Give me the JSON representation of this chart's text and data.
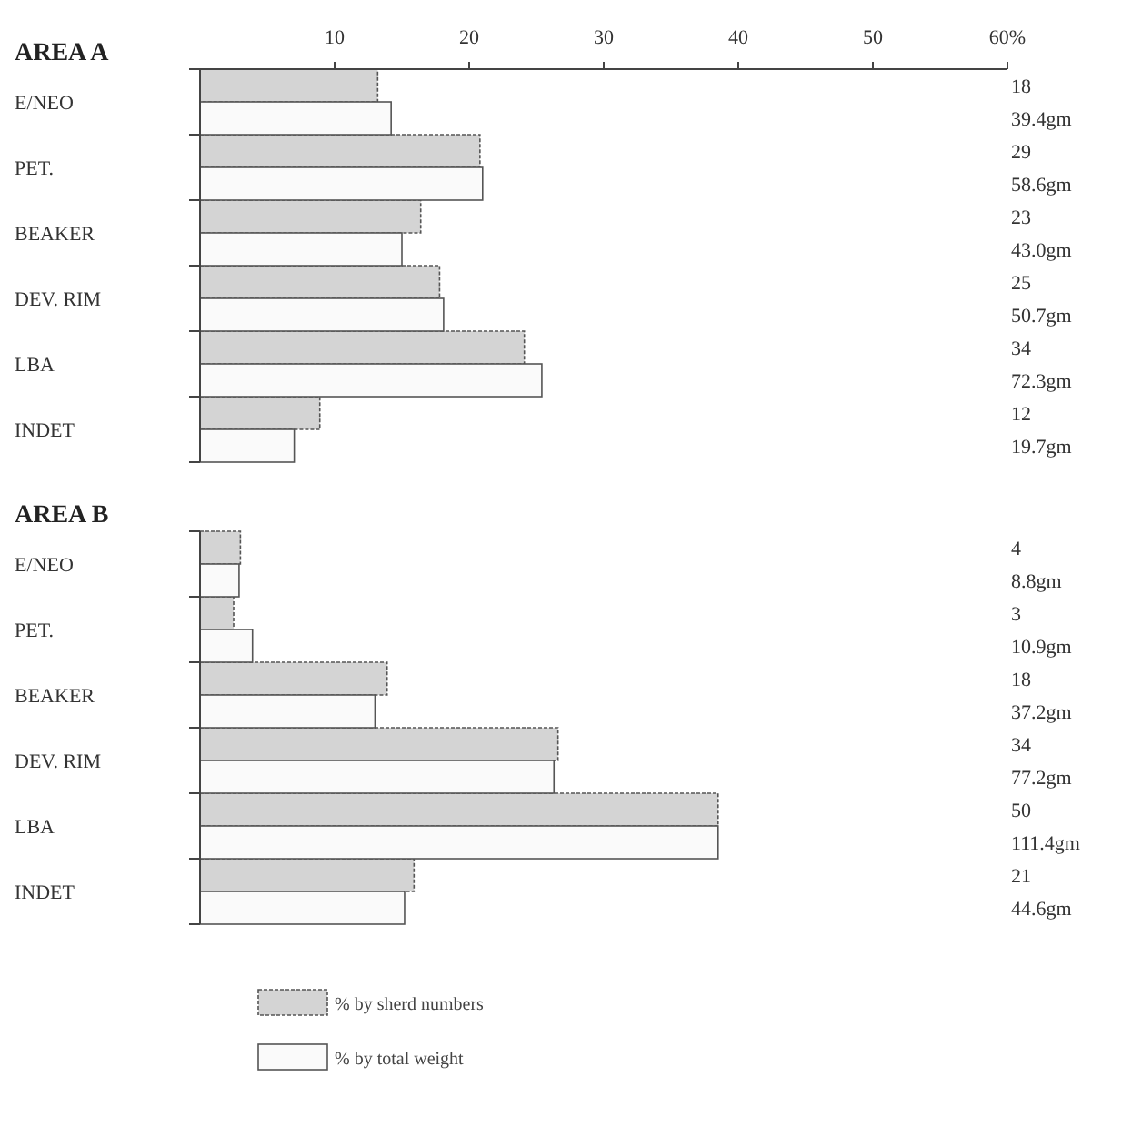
{
  "chart_data": [
    {
      "type": "bar",
      "orientation": "horizontal",
      "title": "AREA A",
      "categories": [
        "E/NEO",
        "PET.",
        "BEAKER",
        "DEV. RIM",
        "LBA",
        "INDET"
      ],
      "xlim": [
        0,
        60
      ],
      "xticks": [
        10,
        20,
        30,
        40,
        50,
        {
          "value": 60,
          "label": "60%"
        }
      ],
      "legend": false,
      "annotations": [
        "18",
        "39.4gm",
        "29",
        "58.6gm",
        "23",
        "43.0gm",
        "25",
        "50.7gm",
        "34",
        "72.3gm",
        "12",
        "19.7gm"
      ],
      "series": [
        {
          "color": "#d4d4d4",
          "values": [
            13.2,
            20.8,
            16.4,
            17.8,
            24.1,
            8.9
          ]
        },
        {
          "color": "#fafafa",
          "values": [
            14.2,
            21.0,
            15.0,
            18.1,
            25.4,
            7.0
          ]
        }
      ]
    },
    {
      "type": "bar",
      "orientation": "horizontal",
      "title": "AREA B",
      "categories": [
        "E/NEO",
        "PET.",
        "BEAKER",
        "DEV. RIM",
        "LBA",
        "INDET"
      ],
      "xlim": [
        0,
        60
      ],
      "legend": "bottom",
      "annotations": [
        "4",
        "8.8gm",
        "3",
        "10.9gm",
        "18",
        "37.2gm",
        "34",
        "77.2gm",
        "50",
        "111.4gm",
        "21",
        "44.6gm"
      ],
      "series": [
        {
          "name": "% by sherd numbers",
          "color": "#d4d4d4",
          "values": [
            3.0,
            2.5,
            13.9,
            26.6,
            38.5,
            15.9
          ]
        },
        {
          "name": "% by total weight",
          "color": "#fafafa",
          "values": [
            2.9,
            3.9,
            13.0,
            26.3,
            38.5,
            15.2
          ]
        }
      ]
    }
  ]
}
